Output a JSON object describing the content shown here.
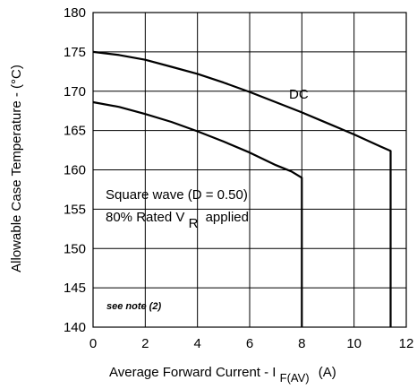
{
  "chart_data": {
    "type": "line",
    "xlabel": "Average Forward Current - I",
    "xlabel_sub": "F(AV)",
    "xlabel_unit": "(A)",
    "ylabel": "Allowable Case Temperature - (°C)",
    "xlim": [
      0,
      12
    ],
    "ylim": [
      140,
      180
    ],
    "xticks": [
      0,
      2,
      4,
      6,
      8,
      10,
      12
    ],
    "yticks": [
      140,
      145,
      150,
      155,
      160,
      165,
      170,
      175,
      180
    ],
    "grid": true,
    "series": [
      {
        "name": "DC",
        "x": [
          0,
          1,
          2,
          3,
          4,
          5,
          6,
          7,
          8,
          9,
          10,
          11,
          11.4,
          11.4
        ],
        "y": [
          175,
          174.6,
          174,
          173.1,
          172.2,
          171.1,
          169.9,
          168.6,
          167.3,
          165.9,
          164.5,
          163,
          162.4,
          140
        ]
      },
      {
        "name": "",
        "x": [
          0,
          1,
          2,
          3,
          4,
          5,
          6,
          7,
          7.6,
          8,
          8
        ],
        "y": [
          168.6,
          168,
          167.1,
          166.1,
          164.9,
          163.6,
          162.2,
          160.6,
          159.8,
          159,
          140
        ]
      }
    ],
    "annotations": {
      "dc_label": "DC",
      "square_wave": "Square wave (D = 0.50)",
      "rated_prefix": "80% Rated V",
      "rated_sub": "R",
      "rated_suffix": "applied",
      "note": "see note (2)"
    }
  }
}
